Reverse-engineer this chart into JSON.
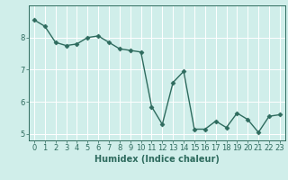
{
  "x": [
    0,
    1,
    2,
    3,
    4,
    5,
    6,
    7,
    8,
    9,
    10,
    11,
    12,
    13,
    14,
    15,
    16,
    17,
    18,
    19,
    20,
    21,
    22,
    23
  ],
  "y": [
    8.55,
    8.35,
    7.85,
    7.75,
    7.8,
    8.0,
    8.05,
    7.85,
    7.65,
    7.6,
    7.55,
    5.85,
    5.3,
    6.6,
    6.95,
    5.15,
    5.15,
    5.4,
    5.2,
    5.65,
    5.45,
    5.05,
    5.55,
    5.6
  ],
  "line_color": "#2e6b5e",
  "marker": "D",
  "marker_size": 2.5,
  "linewidth": 1.0,
  "xlabel": "Humidex (Indice chaleur)",
  "xlim": [
    -0.5,
    23.5
  ],
  "ylim": [
    4.8,
    9.0
  ],
  "yticks": [
    5,
    6,
    7,
    8
  ],
  "xticks": [
    0,
    1,
    2,
    3,
    4,
    5,
    6,
    7,
    8,
    9,
    10,
    11,
    12,
    13,
    14,
    15,
    16,
    17,
    18,
    19,
    20,
    21,
    22,
    23
  ],
  "bg_color": "#d0eeea",
  "grid_color": "#ffffff",
  "tick_color": "#2e6b5e",
  "label_color": "#2e6b5e",
  "tick_fontsize": 6.0,
  "xlabel_fontsize": 7.0
}
